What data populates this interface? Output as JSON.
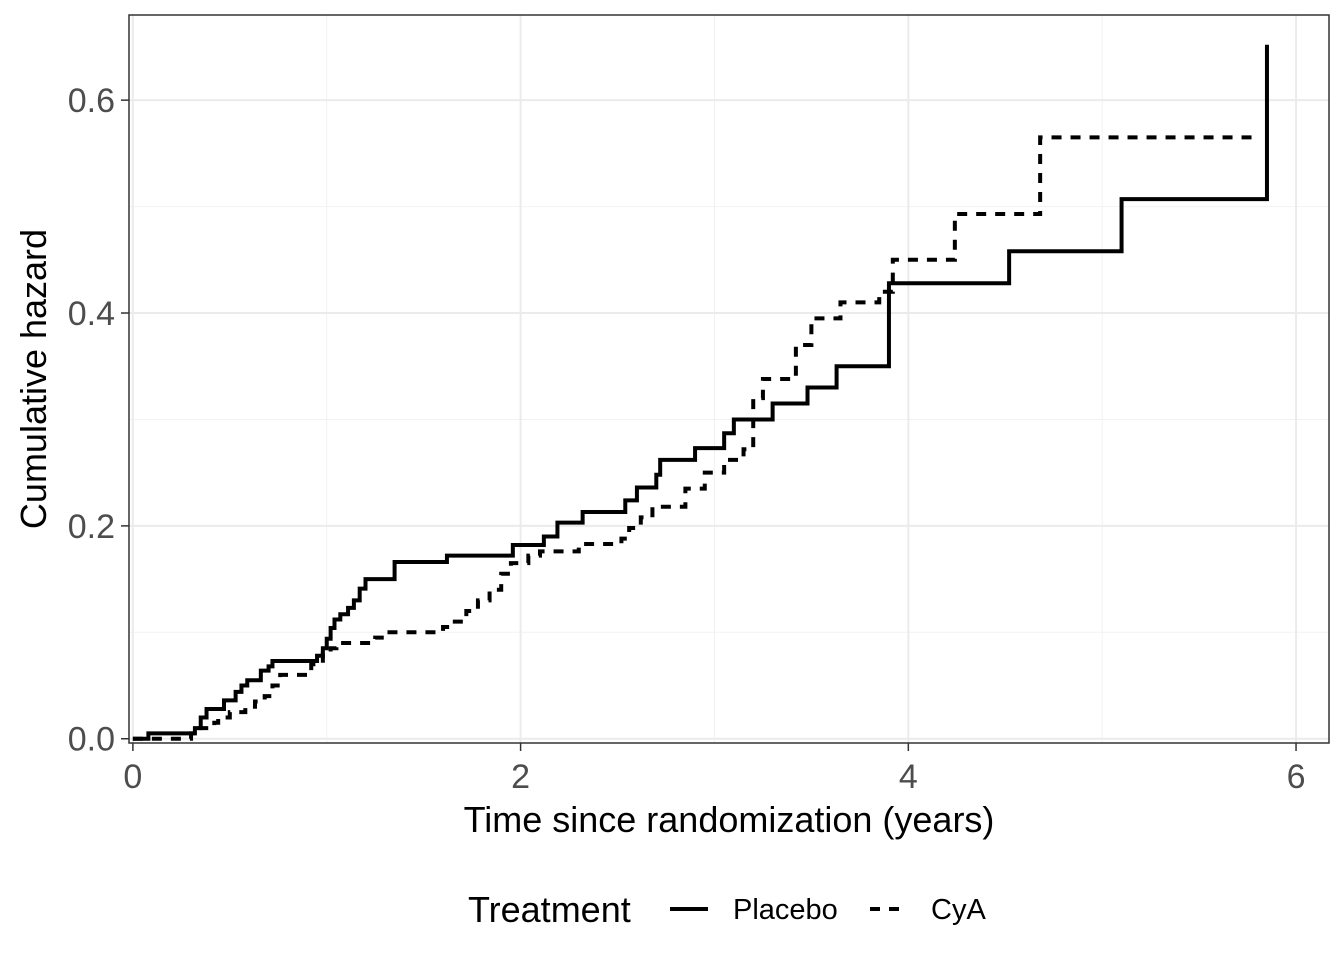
{
  "chart_data": {
    "type": "line",
    "step": true,
    "xlabel": "Time since randomization (years)",
    "ylabel": "Cumulative hazard",
    "xlim": [
      -0.02,
      6.17
    ],
    "ylim": [
      -0.004,
      0.68
    ],
    "x_ticks": [
      0,
      2,
      4,
      6
    ],
    "x_tick_labels": [
      "0",
      "2",
      "4",
      "6"
    ],
    "y_ticks": [
      0.0,
      0.2,
      0.4,
      0.6
    ],
    "y_tick_labels": [
      "0.0",
      "0.2",
      "0.4",
      "0.6"
    ],
    "grid": true,
    "legend": {
      "title": "Treatment",
      "position": "bottom",
      "entries": [
        "Placebo",
        "CyA"
      ]
    },
    "series": [
      {
        "name": "Placebo",
        "line_style": "solid",
        "color": "#000000",
        "x": [
          0.0,
          0.08,
          0.3,
          0.32,
          0.35,
          0.38,
          0.47,
          0.53,
          0.56,
          0.59,
          0.66,
          0.7,
          0.72,
          0.95,
          0.98,
          1.0,
          1.02,
          1.04,
          1.07,
          1.11,
          1.14,
          1.17,
          1.2,
          1.35,
          1.62,
          1.96,
          2.12,
          2.19,
          2.32,
          2.54,
          2.6,
          2.7,
          2.72,
          2.9,
          3.05,
          3.1,
          3.3,
          3.48,
          3.63,
          3.9,
          4.52,
          5.1,
          5.85
        ],
        "y": [
          0.0,
          0.005,
          0.005,
          0.01,
          0.02,
          0.028,
          0.036,
          0.044,
          0.05,
          0.055,
          0.064,
          0.068,
          0.073,
          0.078,
          0.085,
          0.094,
          0.104,
          0.112,
          0.117,
          0.123,
          0.13,
          0.141,
          0.15,
          0.166,
          0.172,
          0.182,
          0.19,
          0.203,
          0.213,
          0.224,
          0.236,
          0.248,
          0.262,
          0.273,
          0.287,
          0.3,
          0.315,
          0.33,
          0.35,
          0.428,
          0.458,
          0.507,
          0.652
        ]
      },
      {
        "name": "CyA",
        "line_style": "dashed",
        "color": "#000000",
        "x": [
          0.0,
          0.03,
          0.3,
          0.33,
          0.42,
          0.44,
          0.5,
          0.58,
          0.63,
          0.68,
          0.72,
          0.76,
          0.92,
          0.98,
          1.02,
          1.05,
          1.25,
          1.3,
          1.6,
          1.65,
          1.72,
          1.78,
          1.84,
          1.9,
          1.95,
          2.04,
          2.1,
          2.3,
          2.52,
          2.56,
          2.62,
          2.68,
          2.85,
          2.95,
          3.05,
          3.15,
          3.2,
          3.25,
          3.42,
          3.5,
          3.65,
          3.85,
          3.92,
          4.24,
          4.68,
          5.8
        ],
        "y": [
          0.0,
          0.0,
          0.005,
          0.01,
          0.015,
          0.02,
          0.025,
          0.03,
          0.035,
          0.04,
          0.05,
          0.06,
          0.07,
          0.08,
          0.085,
          0.09,
          0.095,
          0.1,
          0.105,
          0.11,
          0.12,
          0.13,
          0.14,
          0.155,
          0.165,
          0.172,
          0.176,
          0.183,
          0.188,
          0.198,
          0.208,
          0.218,
          0.235,
          0.25,
          0.262,
          0.272,
          0.32,
          0.338,
          0.37,
          0.395,
          0.41,
          0.42,
          0.45,
          0.493,
          0.565,
          0.565
        ]
      }
    ]
  }
}
